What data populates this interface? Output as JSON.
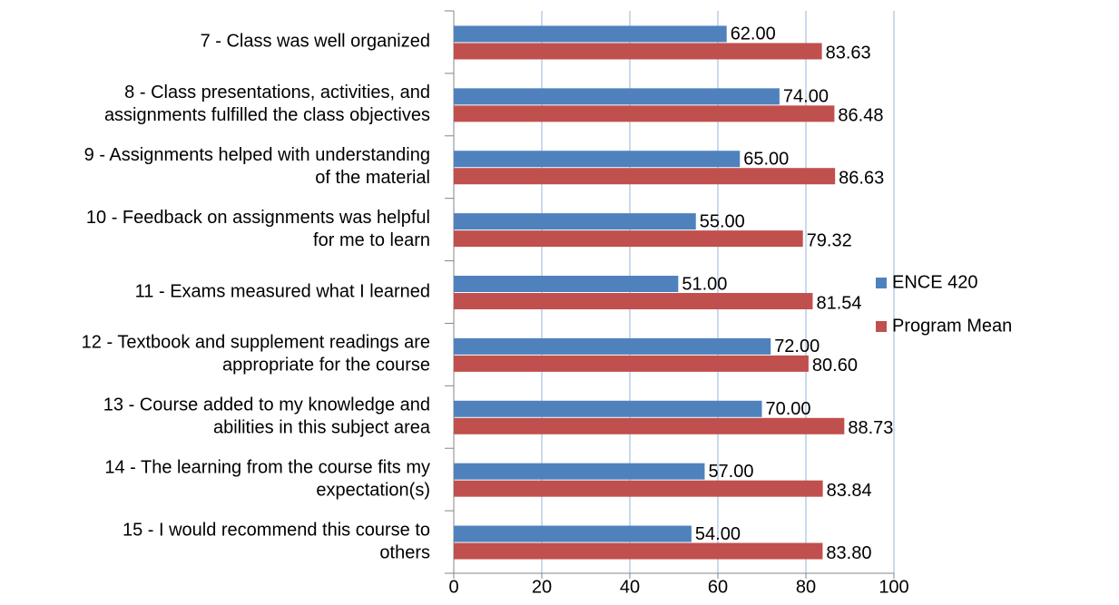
{
  "chart_data": {
    "type": "bar",
    "orientation": "horizontal",
    "categories": [
      [
        "7 - Class was well organized"
      ],
      [
        "8 - Class presentations, activities, and",
        "assignments fulfilled the class objectives"
      ],
      [
        "9 - Assignments helped with understanding",
        "of the material"
      ],
      [
        "10 - Feedback on assignments was helpful",
        "for me to learn"
      ],
      [
        "11 - Exams measured what I learned"
      ],
      [
        "12 - Textbook and supplement readings are",
        "appropriate for the course"
      ],
      [
        "13 - Course added to my knowledge and",
        "abilities in this subject area"
      ],
      [
        "14 - The learning from the course fits my",
        "expectation(s)"
      ],
      [
        "15 - I would recommend this course to",
        "others"
      ]
    ],
    "series": [
      {
        "name": "ENCE 420",
        "color": "#4f81bd",
        "values": [
          62,
          74,
          65,
          55,
          51,
          72,
          70,
          57,
          54
        ],
        "value_labels": [
          "62.00",
          "74.00",
          "65.00",
          "55.00",
          "51.00",
          "72.00",
          "70.00",
          "57.00",
          "54.00"
        ]
      },
      {
        "name": "Program Mean",
        "color": "#c0504d",
        "values": [
          83.63,
          86.48,
          86.63,
          79.32,
          81.54,
          80.6,
          88.73,
          83.84,
          83.8
        ],
        "value_labels": [
          "83.63",
          "86.48",
          "86.63",
          "79.32",
          "81.54",
          "80.60",
          "88.73",
          "83.84",
          "83.80"
        ]
      }
    ],
    "xlim": [
      0,
      100
    ],
    "xticks": [
      0,
      20,
      40,
      60,
      80,
      100
    ],
    "grid": true,
    "legend": "right"
  }
}
